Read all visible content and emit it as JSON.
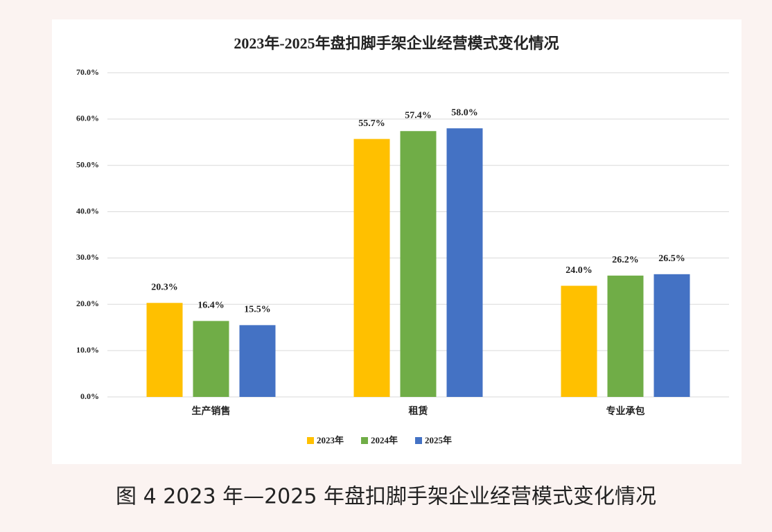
{
  "chart_data": {
    "type": "bar",
    "title": "2023年-2025年盘扣脚手架企业经营模式变化情况",
    "caption": "图 4 2023 年—2025 年盘扣脚手架企业经营模式变化情况",
    "categories": [
      "生产销售",
      "租赁",
      "专业承包"
    ],
    "series": [
      {
        "name": "2023年",
        "color": "#ffc000",
        "values": [
          20.3,
          55.7,
          24.0
        ],
        "value_labels": [
          "20.3%",
          "55.7%",
          "24.0%"
        ]
      },
      {
        "name": "2024年",
        "color": "#70ad47",
        "values": [
          16.4,
          57.4,
          26.2
        ],
        "value_labels": [
          "16.4%",
          "57.4%",
          "26.2%"
        ]
      },
      {
        "name": "2025年",
        "color": "#4472c4",
        "values": [
          15.5,
          58.0,
          26.5
        ],
        "value_labels": [
          "15.5%",
          "58.0%",
          "26.5%"
        ]
      }
    ],
    "ylim": [
      0,
      70
    ],
    "yticks": [
      {
        "value": 0,
        "label": "0.0%"
      },
      {
        "value": 10,
        "label": "10.0%"
      },
      {
        "value": 20,
        "label": "20.0%"
      },
      {
        "value": 30,
        "label": "30.0%"
      },
      {
        "value": 40,
        "label": "40.0%"
      },
      {
        "value": 50,
        "label": "50.0%"
      },
      {
        "value": 60,
        "label": "60.0%"
      },
      {
        "value": 70,
        "label": "70.0%"
      }
    ],
    "grid": true,
    "legend": "bottom"
  }
}
